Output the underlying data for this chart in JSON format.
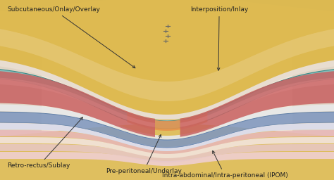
{
  "background_color": "#d0d0d0",
  "labels": {
    "subcutaneous": "Subcutaneous/Onlay/Overlay",
    "interposition": "Interposition/Inlay",
    "retrorectus": "Retro-rectus/Sublay",
    "preperitoneal": "Pre-peritoneal/Underlay",
    "intraabdominal": "Intra-abdominal/Intra-peritoneal (IPOM)"
  },
  "layers": {
    "fat_color": "#ddb84a",
    "fat_light": "#e8cc80",
    "skin_color": "#f0e0c0",
    "teal_color": "#7abfbd",
    "teal_dark": "#3a8a88",
    "orange_color": "#e8904a",
    "muscle_color": "#c86060",
    "muscle_light": "#d88080",
    "white_layer": "#e8e8e8",
    "blue_layer": "#8098c0",
    "blue_light": "#a8bcd8",
    "cream_layer": "#f0e8d8",
    "pink_layer1": "#e8b8b8",
    "pink_layer2": "#e8c8c8",
    "pink_layer3": "#f0d0d8",
    "pink_layer4": "#f0dce0",
    "pink_layer5": "#e8b0c0"
  }
}
